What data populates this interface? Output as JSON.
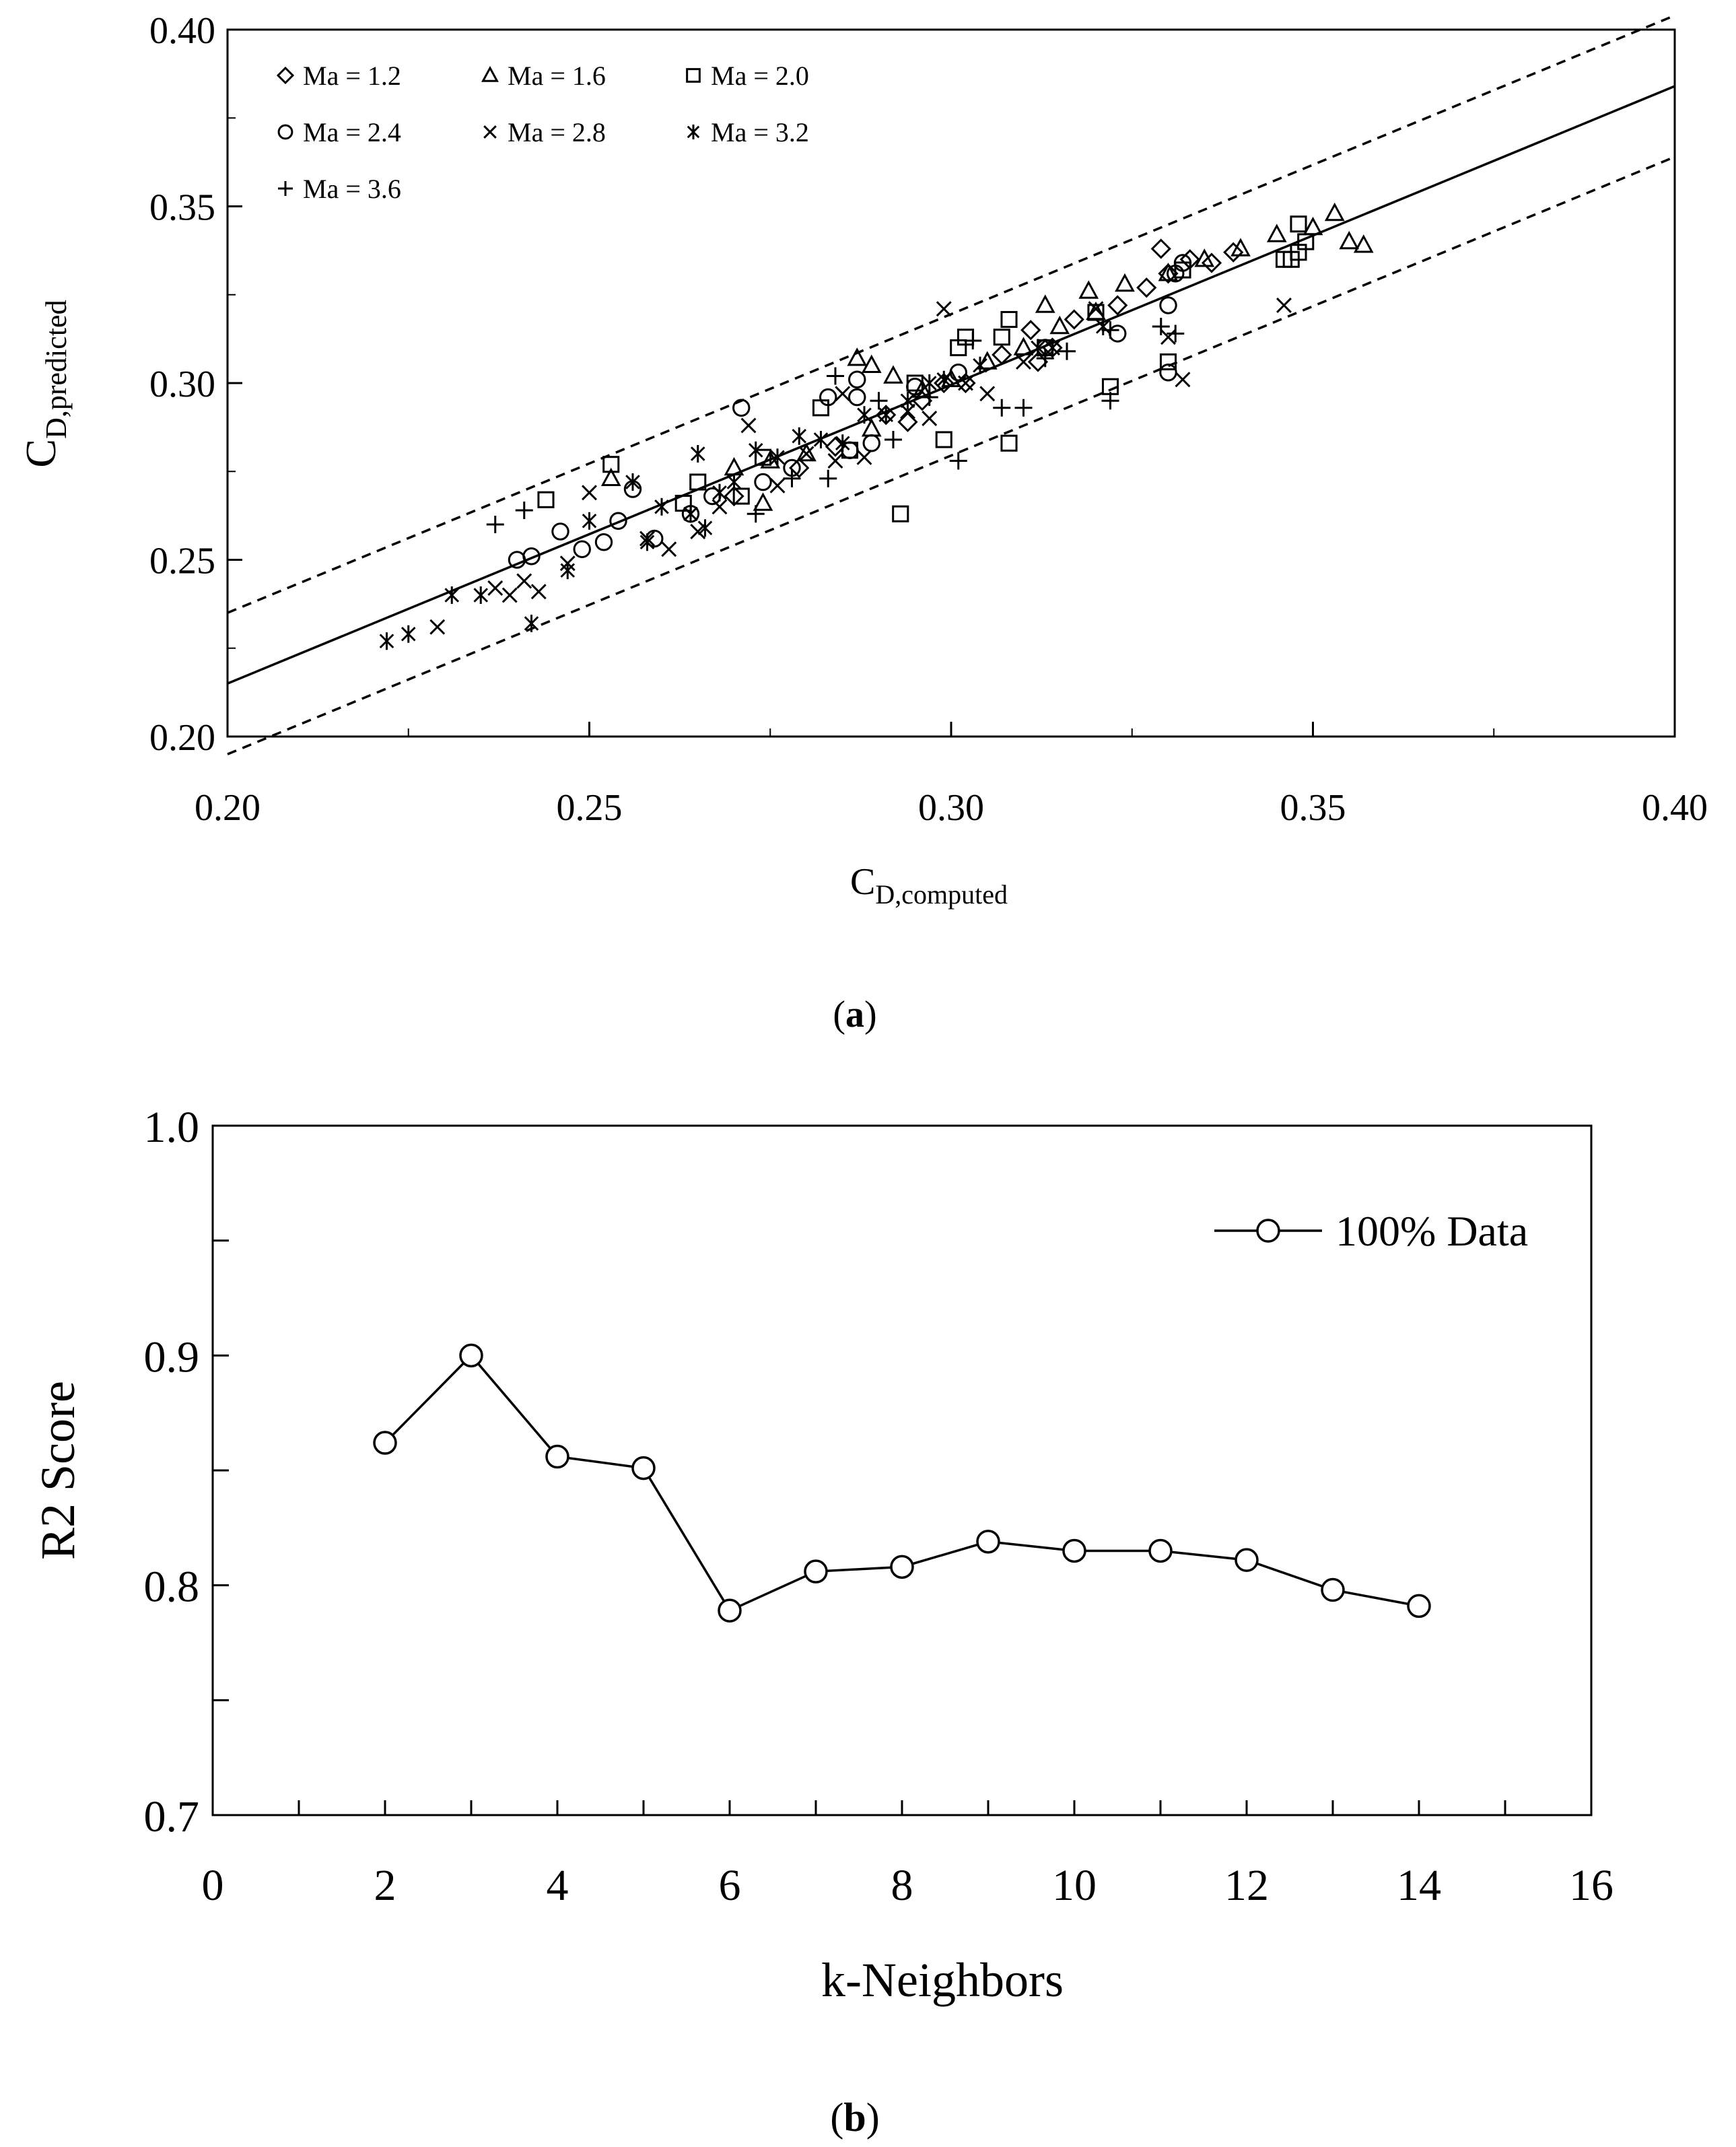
{
  "chart_data": [
    {
      "type": "scatter",
      "panel_label": "a",
      "xlabel_main": "C",
      "xlabel_sub": "D,computed",
      "ylabel_main": "C",
      "ylabel_sub": "D,predicted",
      "xlim": [
        0.2,
        0.4
      ],
      "ylim": [
        0.2,
        0.4
      ],
      "xticks": [
        "0.20",
        "0.25",
        "0.30",
        "0.35",
        "0.40"
      ],
      "yticks": [
        "0.20",
        "0.25",
        "0.30",
        "0.35",
        "0.40"
      ],
      "reference_lines": [
        {
          "name": "fit",
          "style": "solid",
          "x": [
            0.2,
            0.4
          ],
          "y": [
            0.215,
            0.384
          ]
        },
        {
          "name": "upper-bound",
          "style": "dashed",
          "x": [
            0.2,
            0.4
          ],
          "y": [
            0.235,
            0.404
          ]
        },
        {
          "name": "lower-bound",
          "style": "dashed",
          "x": [
            0.2,
            0.4
          ],
          "y": [
            0.195,
            0.364
          ]
        }
      ],
      "series": [
        {
          "name": "Ma = 1.2",
          "marker": "diamond",
          "points": [
            [
              0.27,
              0.268
            ],
            [
              0.284,
              0.282
            ],
            [
              0.291,
              0.291
            ],
            [
              0.296,
              0.295
            ],
            [
              0.302,
              0.3
            ],
            [
              0.307,
              0.308
            ],
            [
              0.311,
              0.315
            ],
            [
              0.314,
              0.31
            ],
            [
              0.317,
              0.318
            ],
            [
              0.323,
              0.322
            ],
            [
              0.327,
              0.327
            ],
            [
              0.33,
              0.331
            ],
            [
              0.333,
              0.335
            ],
            [
              0.336,
              0.334
            ],
            [
              0.339,
              0.337
            ],
            [
              0.329,
              0.338
            ],
            [
              0.312,
              0.306
            ],
            [
              0.294,
              0.289
            ],
            [
              0.279,
              0.276
            ],
            [
              0.299,
              0.3
            ]
          ]
        },
        {
          "name": "Ma = 1.6",
          "marker": "triangle",
          "points": [
            [
              0.253,
              0.273
            ],
            [
              0.27,
              0.276
            ],
            [
              0.275,
              0.278
            ],
            [
              0.28,
              0.28
            ],
            [
              0.287,
              0.307
            ],
            [
              0.289,
              0.305
            ],
            [
              0.292,
              0.302
            ],
            [
              0.296,
              0.298
            ],
            [
              0.3,
              0.301
            ],
            [
              0.305,
              0.306
            ],
            [
              0.31,
              0.31
            ],
            [
              0.315,
              0.316
            ],
            [
              0.32,
              0.32
            ],
            [
              0.324,
              0.328
            ],
            [
              0.33,
              0.331
            ],
            [
              0.335,
              0.335
            ],
            [
              0.34,
              0.338
            ],
            [
              0.345,
              0.342
            ],
            [
              0.35,
              0.344
            ],
            [
              0.353,
              0.348
            ],
            [
              0.355,
              0.34
            ],
            [
              0.357,
              0.339
            ],
            [
              0.274,
              0.266
            ],
            [
              0.289,
              0.287
            ],
            [
              0.313,
              0.322
            ],
            [
              0.319,
              0.326
            ]
          ]
        },
        {
          "name": "Ma = 2.0",
          "marker": "square",
          "points": [
            [
              0.244,
              0.267
            ],
            [
              0.253,
              0.277
            ],
            [
              0.263,
              0.266
            ],
            [
              0.271,
              0.268
            ],
            [
              0.274,
              0.279
            ],
            [
              0.282,
              0.293
            ],
            [
              0.286,
              0.281
            ],
            [
              0.293,
              0.263
            ],
            [
              0.295,
              0.3
            ],
            [
              0.299,
              0.284
            ],
            [
              0.301,
              0.31
            ],
            [
              0.302,
              0.313
            ],
            [
              0.307,
              0.313
            ],
            [
              0.308,
              0.283
            ],
            [
              0.308,
              0.318
            ],
            [
              0.313,
              0.31
            ],
            [
              0.32,
              0.32
            ],
            [
              0.322,
              0.299
            ],
            [
              0.33,
              0.306
            ],
            [
              0.346,
              0.335
            ],
            [
              0.347,
              0.335
            ],
            [
              0.348,
              0.337
            ],
            [
              0.348,
              0.345
            ],
            [
              0.349,
              0.34
            ],
            [
              0.332,
              0.332
            ],
            [
              0.265,
              0.272
            ]
          ]
        },
        {
          "name": "Ma = 2.4",
          "marker": "circle",
          "points": [
            [
              0.24,
              0.25
            ],
            [
              0.242,
              0.251
            ],
            [
              0.246,
              0.258
            ],
            [
              0.249,
              0.253
            ],
            [
              0.252,
              0.255
            ],
            [
              0.254,
              0.261
            ],
            [
              0.256,
              0.27
            ],
            [
              0.259,
              0.256
            ],
            [
              0.264,
              0.263
            ],
            [
              0.267,
              0.268
            ],
            [
              0.271,
              0.293
            ],
            [
              0.274,
              0.272
            ],
            [
              0.278,
              0.276
            ],
            [
              0.283,
              0.296
            ],
            [
              0.286,
              0.281
            ],
            [
              0.287,
              0.301
            ],
            [
              0.287,
              0.296
            ],
            [
              0.289,
              0.283
            ],
            [
              0.295,
              0.299
            ],
            [
              0.301,
              0.303
            ],
            [
              0.33,
              0.303
            ],
            [
              0.33,
              0.322
            ],
            [
              0.331,
              0.331
            ],
            [
              0.332,
              0.334
            ],
            [
              0.313,
              0.31
            ],
            [
              0.323,
              0.314
            ]
          ]
        },
        {
          "name": "Ma = 2.8",
          "marker": "x",
          "points": [
            [
              0.229,
              0.231
            ],
            [
              0.237,
              0.242
            ],
            [
              0.239,
              0.24
            ],
            [
              0.241,
              0.244
            ],
            [
              0.243,
              0.241
            ],
            [
              0.247,
              0.249
            ],
            [
              0.25,
              0.269
            ],
            [
              0.258,
              0.256
            ],
            [
              0.261,
              0.253
            ],
            [
              0.265,
              0.258
            ],
            [
              0.268,
              0.265
            ],
            [
              0.272,
              0.288
            ],
            [
              0.276,
              0.271
            ],
            [
              0.28,
              0.28
            ],
            [
              0.284,
              0.278
            ],
            [
              0.288,
              0.279
            ],
            [
              0.294,
              0.292
            ],
            [
              0.297,
              0.29
            ],
            [
              0.299,
              0.321
            ],
            [
              0.302,
              0.3
            ],
            [
              0.305,
              0.297
            ],
            [
              0.31,
              0.306
            ],
            [
              0.314,
              0.31
            ],
            [
              0.32,
              0.321
            ],
            [
              0.33,
              0.313
            ],
            [
              0.346,
              0.322
            ],
            [
              0.332,
              0.301
            ],
            [
              0.285,
              0.297
            ]
          ]
        },
        {
          "name": "Ma = 3.2",
          "marker": "asterisk",
          "points": [
            [
              0.222,
              0.227
            ],
            [
              0.225,
              0.229
            ],
            [
              0.231,
              0.24
            ],
            [
              0.235,
              0.24
            ],
            [
              0.242,
              0.232
            ],
            [
              0.247,
              0.247
            ],
            [
              0.25,
              0.261
            ],
            [
              0.256,
              0.272
            ],
            [
              0.258,
              0.255
            ],
            [
              0.26,
              0.265
            ],
            [
              0.264,
              0.263
            ],
            [
              0.265,
              0.28
            ],
            [
              0.266,
              0.259
            ],
            [
              0.268,
              0.269
            ],
            [
              0.27,
              0.272
            ],
            [
              0.273,
              0.281
            ],
            [
              0.276,
              0.279
            ],
            [
              0.279,
              0.285
            ],
            [
              0.282,
              0.284
            ],
            [
              0.285,
              0.283
            ],
            [
              0.288,
              0.291
            ],
            [
              0.291,
              0.291
            ],
            [
              0.294,
              0.295
            ],
            [
              0.297,
              0.3
            ],
            [
              0.299,
              0.301
            ],
            [
              0.304,
              0.305
            ],
            [
              0.312,
              0.31
            ],
            [
              0.321,
              0.316
            ]
          ]
        },
        {
          "name": "Ma = 3.6",
          "marker": "plus",
          "points": [
            [
              0.237,
              0.26
            ],
            [
              0.241,
              0.264
            ],
            [
              0.273,
              0.263
            ],
            [
              0.278,
              0.273
            ],
            [
              0.283,
              0.273
            ],
            [
              0.284,
              0.302
            ],
            [
              0.292,
              0.284
            ],
            [
              0.297,
              0.296
            ],
            [
              0.301,
              0.278
            ],
            [
              0.307,
              0.293
            ],
            [
              0.31,
              0.293
            ],
            [
              0.313,
              0.307
            ],
            [
              0.316,
              0.309
            ],
            [
              0.322,
              0.295
            ],
            [
              0.322,
              0.315
            ],
            [
              0.329,
              0.316
            ],
            [
              0.331,
              0.314
            ],
            [
              0.303,
              0.312
            ],
            [
              0.29,
              0.295
            ]
          ]
        }
      ]
    },
    {
      "type": "line",
      "panel_label": "b",
      "xlabel": "k-Neighbors",
      "ylabel": "R2 Score",
      "xlim": [
        0,
        16
      ],
      "ylim": [
        0.7,
        1.0
      ],
      "xticks": [
        "0",
        "2",
        "4",
        "6",
        "8",
        "10",
        "12",
        "14",
        "16"
      ],
      "yticks": [
        "0.7",
        "0.8",
        "0.9",
        "1.0"
      ],
      "series": [
        {
          "name": "100% Data",
          "x": [
            2,
            3,
            4,
            5,
            6,
            7,
            8,
            9,
            10,
            11,
            12,
            13,
            14
          ],
          "values": [
            0.862,
            0.9,
            0.856,
            0.851,
            0.789,
            0.806,
            0.808,
            0.819,
            0.815,
            0.815,
            0.811,
            0.798,
            0.791
          ]
        }
      ]
    }
  ]
}
